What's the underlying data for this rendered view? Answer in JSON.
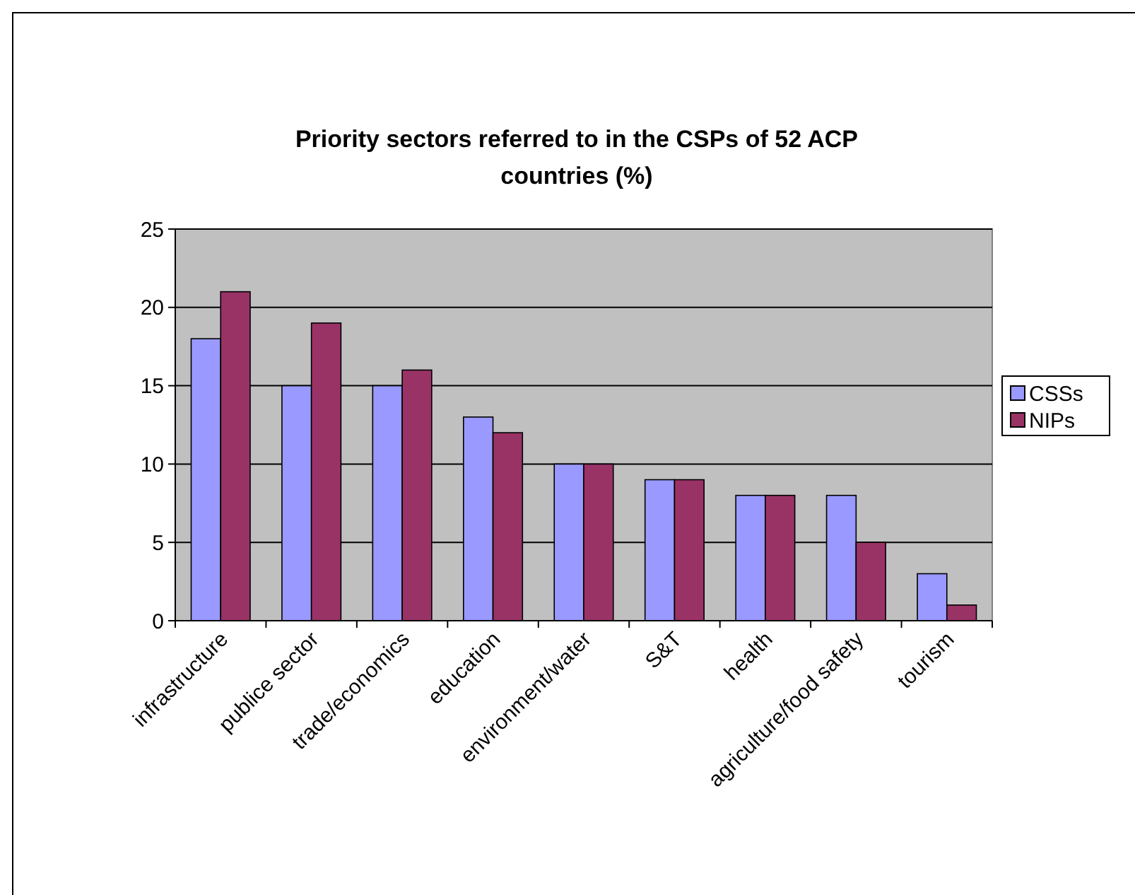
{
  "chart_data": {
    "type": "bar",
    "title": "Priority sectors referred to in the CSPs of 52 ACP countries (%)",
    "categories": [
      "infrastructure",
      "publice sector",
      "trade/economics",
      "education",
      "environment/water",
      "S&T",
      "health",
      "agriculture/food safety",
      "tourism"
    ],
    "series": [
      {
        "name": "CSSs",
        "color": "#9999ff",
        "values": [
          18,
          15,
          15,
          13,
          10,
          9,
          8,
          8,
          3
        ]
      },
      {
        "name": "NIPs",
        "color": "#993366",
        "values": [
          21,
          19,
          16,
          12,
          10,
          9,
          8,
          5,
          1
        ]
      }
    ],
    "ylim": [
      0,
      25
    ],
    "yticks": [
      0,
      5,
      10,
      15,
      20,
      25
    ],
    "grid": "y",
    "legend": "right"
  }
}
